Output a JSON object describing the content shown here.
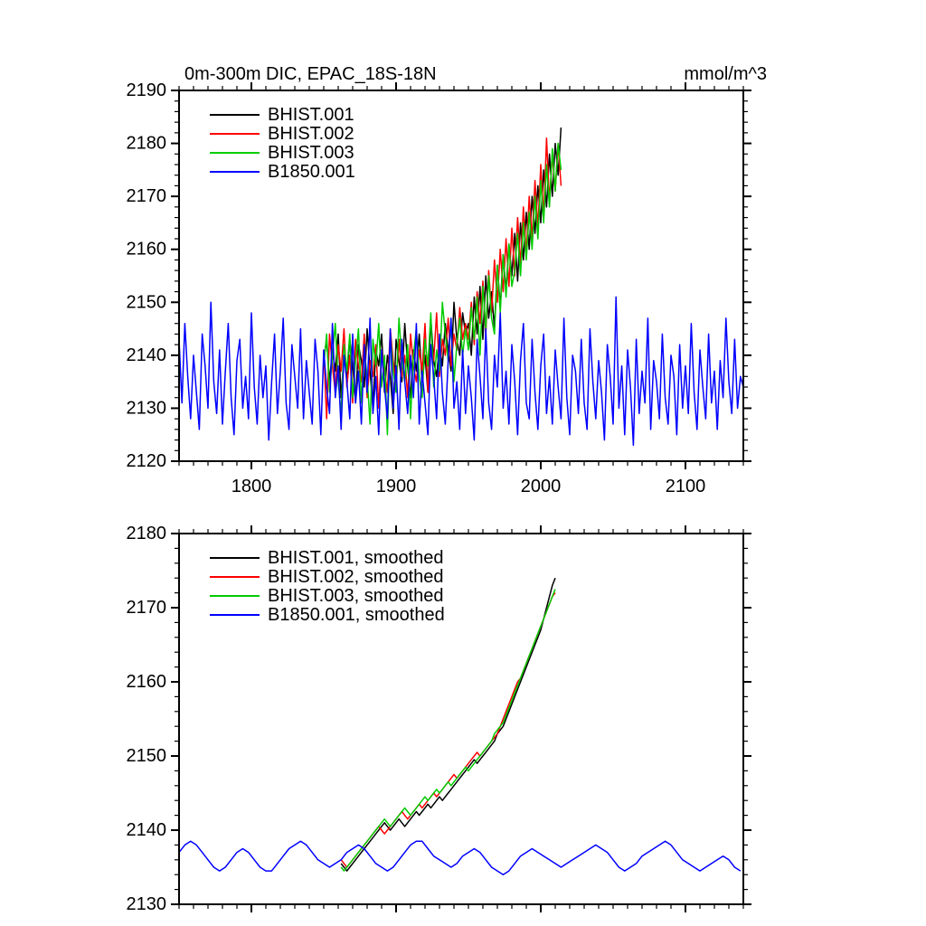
{
  "page": {
    "background": "#ffffff",
    "text_color": "#000000"
  },
  "chart_data": [
    {
      "type": "line",
      "title": "0m-300m DIC, EPAC_18S-18N",
      "units_label": "mmol/m^3",
      "xlim": [
        1750,
        2140
      ],
      "ylim": [
        2120,
        2190
      ],
      "xticks": [
        1800,
        1900,
        2000,
        2100
      ],
      "ytick_step": 10,
      "minor_x_step": 10,
      "minor_y_step": 2,
      "show_x_labels": true,
      "grid": false,
      "legend_position": "top-left",
      "legend": [
        {
          "label": "BHIST.001",
          "color": "#000000"
        },
        {
          "label": "BHIST.002",
          "color": "#ff0000"
        },
        {
          "label": "BHIST.003",
          "color": "#00cc00"
        },
        {
          "label": "B1850.001",
          "color": "#0000ff"
        }
      ],
      "series": [
        {
          "name": "BHIST.001",
          "color": "#000000",
          "x_start": 1850,
          "x_step": 2,
          "values": [
            2139,
            2143,
            2135,
            2141,
            2137,
            2144,
            2132,
            2140,
            2136,
            2143,
            2138,
            2131,
            2142,
            2139,
            2134,
            2145,
            2137,
            2130,
            2141,
            2138,
            2144,
            2133,
            2140,
            2136,
            2129,
            2143,
            2139,
            2135,
            2146,
            2138,
            2132,
            2141,
            2137,
            2144,
            2135,
            2140,
            2133,
            2147,
            2139,
            2136,
            2142,
            2138,
            2146,
            2141,
            2137,
            2150,
            2143,
            2140,
            2148,
            2144,
            2146,
            2140,
            2151,
            2144,
            2153,
            2143,
            2155,
            2147,
            2152,
            2145,
            2157,
            2149,
            2159,
            2152,
            2161,
            2155,
            2163,
            2154,
            2165,
            2158,
            2167,
            2160,
            2170,
            2163,
            2172,
            2165,
            2175,
            2168,
            2178,
            2170,
            2180,
            2174,
            2183
          ]
        },
        {
          "name": "BHIST.002",
          "color": "#ff0000",
          "x_start": 1850,
          "x_step": 2,
          "values": [
            2141,
            2128,
            2144,
            2138,
            2133,
            2142,
            2137,
            2145,
            2134,
            2140,
            2131,
            2143,
            2138,
            2135,
            2144,
            2132,
            2139,
            2136,
            2142,
            2130,
            2141,
            2137,
            2133,
            2145,
            2139,
            2134,
            2143,
            2136,
            2140,
            2132,
            2144,
            2138,
            2135,
            2141,
            2137,
            2146,
            2133,
            2142,
            2139,
            2148,
            2136,
            2143,
            2140,
            2147,
            2138,
            2144,
            2141,
            2149,
            2143,
            2146,
            2143,
            2150,
            2142,
            2152,
            2146,
            2154,
            2144,
            2156,
            2148,
            2158,
            2150,
            2160,
            2152,
            2162,
            2153,
            2164,
            2155,
            2166,
            2157,
            2168,
            2159,
            2170,
            2162,
            2173,
            2164,
            2176,
            2166,
            2181,
            2169,
            2178,
            2171,
            2180,
            2172
          ]
        },
        {
          "name": "BHIST.003",
          "color": "#00cc00",
          "x_start": 1850,
          "x_step": 2,
          "values": [
            2138,
            2144,
            2133,
            2140,
            2146,
            2135,
            2129,
            2142,
            2137,
            2144,
            2132,
            2139,
            2145,
            2131,
            2141,
            2136,
            2127,
            2143,
            2138,
            2146,
            2134,
            2140,
            2125,
            2144,
            2137,
            2133,
            2147,
            2139,
            2135,
            2142,
            2128,
            2140,
            2145,
            2136,
            2132,
            2143,
            2138,
            2148,
            2134,
            2141,
            2137,
            2150,
            2144,
            2139,
            2146,
            2135,
            2142,
            2147,
            2140,
            2145,
            2141,
            2149,
            2143,
            2151,
            2140,
            2153,
            2145,
            2155,
            2147,
            2144,
            2157,
            2148,
            2159,
            2151,
            2161,
            2153,
            2156,
            2163,
            2155,
            2165,
            2158,
            2167,
            2160,
            2170,
            2162,
            2173,
            2165,
            2176,
            2168,
            2179,
            2171,
            2180,
            2175
          ]
        },
        {
          "name": "B1850.001",
          "color": "#0000ff",
          "x_start": 1750,
          "x_step": 2,
          "values": [
            2143,
            2131,
            2146,
            2136,
            2128,
            2140,
            2133,
            2126,
            2144,
            2138,
            2130,
            2150,
            2135,
            2129,
            2141,
            2127,
            2137,
            2146,
            2132,
            2125,
            2139,
            2143,
            2130,
            2136,
            2128,
            2148,
            2134,
            2127,
            2140,
            2132,
            2138,
            2124,
            2135,
            2144,
            2129,
            2137,
            2147,
            2131,
            2126,
            2142,
            2136,
            2130,
            2145,
            2128,
            2139,
            2133,
            2127,
            2143,
            2137,
            2125,
            2141,
            2134,
            2129,
            2146,
            2132,
            2138,
            2126,
            2140,
            2135,
            2128,
            2144,
            2131,
            2137,
            2127,
            2142,
            2133,
            2147,
            2129,
            2136,
            2125,
            2141,
            2134,
            2128,
            2145,
            2130,
            2138,
            2126,
            2143,
            2135,
            2129,
            2140,
            2132,
            2146,
            2127,
            2137,
            2131,
            2125,
            2142,
            2136,
            2128,
            2144,
            2133,
            2127,
            2139,
            2147,
            2130,
            2135,
            2126,
            2141,
            2129,
            2138,
            2132,
            2124,
            2143,
            2136,
            2128,
            2145,
            2131,
            2126,
            2140,
            2134,
            2148,
            2130,
            2137,
            2127,
            2142,
            2135,
            2125,
            2139,
            2146,
            2131,
            2128,
            2143,
            2133,
            2126,
            2138,
            2144,
            2129,
            2136,
            2127,
            2141,
            2134,
            2128,
            2147,
            2132,
            2125,
            2140,
            2137,
            2129,
            2143,
            2131,
            2126,
            2145,
            2135,
            2128,
            2139,
            2133,
            2124,
            2142,
            2136,
            2127,
            2151,
            2130,
            2138,
            2125,
            2141,
            2134,
            2123,
            2143,
            2129,
            2137,
            2131,
            2147,
            2126,
            2139,
            2135,
            2128,
            2144,
            2132,
            2127,
            2140,
            2136,
            2125,
            2142,
            2130,
            2138,
            2129,
            2146,
            2133,
            2126,
            2141,
            2134,
            2128,
            2144,
            2131,
            2137,
            2126,
            2139,
            2132,
            2147,
            2135,
            2129,
            2143,
            2130,
            2136,
            2134
          ]
        }
      ]
    },
    {
      "type": "line",
      "title": "",
      "units_label": "",
      "xlim": [
        1750,
        2140
      ],
      "ylim": [
        2130,
        2180
      ],
      "xticks": [
        1800,
        1900,
        2000,
        2100
      ],
      "ytick_step": 10,
      "minor_x_step": 10,
      "minor_y_step": 2,
      "show_x_labels": false,
      "grid": false,
      "legend_position": "top-left",
      "legend": [
        {
          "label": "BHIST.001, smoothed",
          "color": "#000000"
        },
        {
          "label": "BHIST.002, smoothed",
          "color": "#ff0000"
        },
        {
          "label": "BHIST.003, smoothed",
          "color": "#00cc00"
        },
        {
          "label": "B1850.001, smoothed",
          "color": "#0000ff"
        }
      ],
      "series": [
        {
          "name": "BHIST.001-smoothed",
          "color": "#000000",
          "x_start": 1862,
          "x_step": 2,
          "values": [
            2135.5,
            2135,
            2134.5,
            2135,
            2135.5,
            2136,
            2136.5,
            2137,
            2137.5,
            2138,
            2138.5,
            2139,
            2139.5,
            2140,
            2140.5,
            2141,
            2140.5,
            2140,
            2140.5,
            2141,
            2141.5,
            2141,
            2140.5,
            2141,
            2141.5,
            2142,
            2142.5,
            2142,
            2142.5,
            2143,
            2143.5,
            2143,
            2143.5,
            2144,
            2144.5,
            2144,
            2144.5,
            2145,
            2145.5,
            2146,
            2146.5,
            2147,
            2147.5,
            2148,
            2148.5,
            2149,
            2149.5,
            2149,
            2149.5,
            2150,
            2150.5,
            2151,
            2151.5,
            2152,
            2153,
            2153.5,
            2154,
            2155,
            2156,
            2157,
            2158,
            2159,
            2160,
            2161,
            2162,
            2163,
            2164,
            2165,
            2166,
            2167,
            2168.5,
            2170,
            2171.5,
            2173,
            2174
          ]
        },
        {
          "name": "BHIST.002-smoothed",
          "color": "#ff0000",
          "x_start": 1862,
          "x_step": 2,
          "values": [
            2136,
            2135.5,
            2135,
            2135.5,
            2136,
            2136.5,
            2137,
            2137.5,
            2138,
            2138.5,
            2139,
            2139.5,
            2140,
            2140.5,
            2140,
            2139.5,
            2140,
            2140.5,
            2141,
            2141.5,
            2142,
            2142.5,
            2142,
            2141.5,
            2142,
            2142.5,
            2143,
            2143.5,
            2143,
            2143.5,
            2144,
            2144.5,
            2145,
            2144.5,
            2145,
            2145.5,
            2146,
            2146.5,
            2147,
            2147.5,
            2147,
            2147.5,
            2148,
            2148.5,
            2149,
            2149.5,
            2150,
            2150.5,
            2150,
            2150.5,
            2151,
            2151.5,
            2152,
            2152.5,
            2153,
            2154,
            2155,
            2156,
            2157,
            2158,
            2159,
            2160,
            2160.5,
            2161.5,
            2162.5,
            2163.5,
            2164.5,
            2165.5,
            2166.5,
            2167.5,
            2168.5,
            2169.5,
            2170.5,
            2171.5,
            2172
          ]
        },
        {
          "name": "BHIST.003-smoothed",
          "color": "#00cc00",
          "x_start": 1862,
          "x_step": 2,
          "values": [
            2135,
            2134.5,
            2135,
            2135.5,
            2136,
            2136.5,
            2137,
            2137.5,
            2138,
            2138.5,
            2139,
            2139.5,
            2140,
            2140.5,
            2141,
            2141.5,
            2141,
            2140.5,
            2141,
            2141.5,
            2142,
            2142.5,
            2143,
            2142.5,
            2142,
            2142.5,
            2143,
            2143.5,
            2144,
            2144.5,
            2144,
            2144.5,
            2145,
            2145.5,
            2145,
            2145.5,
            2146,
            2146.5,
            2146,
            2146.5,
            2147,
            2147.5,
            2148,
            2148.5,
            2148,
            2148.5,
            2149,
            2149.5,
            2150,
            2150.5,
            2151,
            2151.5,
            2152,
            2153,
            2153.5,
            2154,
            2154.5,
            2155.5,
            2156.5,
            2157.5,
            2158.5,
            2159.5,
            2160.5,
            2161.5,
            2162.5,
            2163.5,
            2164.5,
            2165.5,
            2166.5,
            2167.5,
            2168.5,
            2169.5,
            2170.5,
            2171.5,
            2172.5
          ]
        },
        {
          "name": "B1850.001-smoothed",
          "color": "#0000ff",
          "x_start": 1750,
          "x_step": 4,
          "values": [
            2137,
            2138,
            2138.5,
            2138,
            2137,
            2136,
            2135,
            2134.5,
            2135,
            2136,
            2137,
            2137.5,
            2137,
            2136,
            2135,
            2134.5,
            2134.5,
            2135.5,
            2136.5,
            2137.5,
            2138,
            2138.5,
            2138,
            2137,
            2136,
            2135.5,
            2135,
            2135.5,
            2136,
            2137,
            2137.5,
            2138,
            2137.5,
            2136.5,
            2135.5,
            2135,
            2134.5,
            2135,
            2136,
            2137,
            2138,
            2138.5,
            2138.5,
            2137.5,
            2136.5,
            2136,
            2135.5,
            2135,
            2135.5,
            2136.5,
            2137,
            2137.5,
            2137,
            2136,
            2135,
            2134.5,
            2134,
            2134.5,
            2135.5,
            2136.5,
            2137,
            2137.5,
            2137,
            2136.5,
            2136,
            2135.5,
            2135,
            2135.5,
            2136,
            2136.5,
            2137,
            2137.5,
            2138,
            2137.5,
            2137,
            2136,
            2135,
            2134.5,
            2135,
            2135.5,
            2136.5,
            2137,
            2137.5,
            2138,
            2138.5,
            2138,
            2137,
            2136,
            2135.5,
            2135,
            2134.5,
            2135,
            2135.5,
            2136,
            2136.5,
            2136,
            2135,
            2134.5
          ]
        }
      ]
    }
  ]
}
